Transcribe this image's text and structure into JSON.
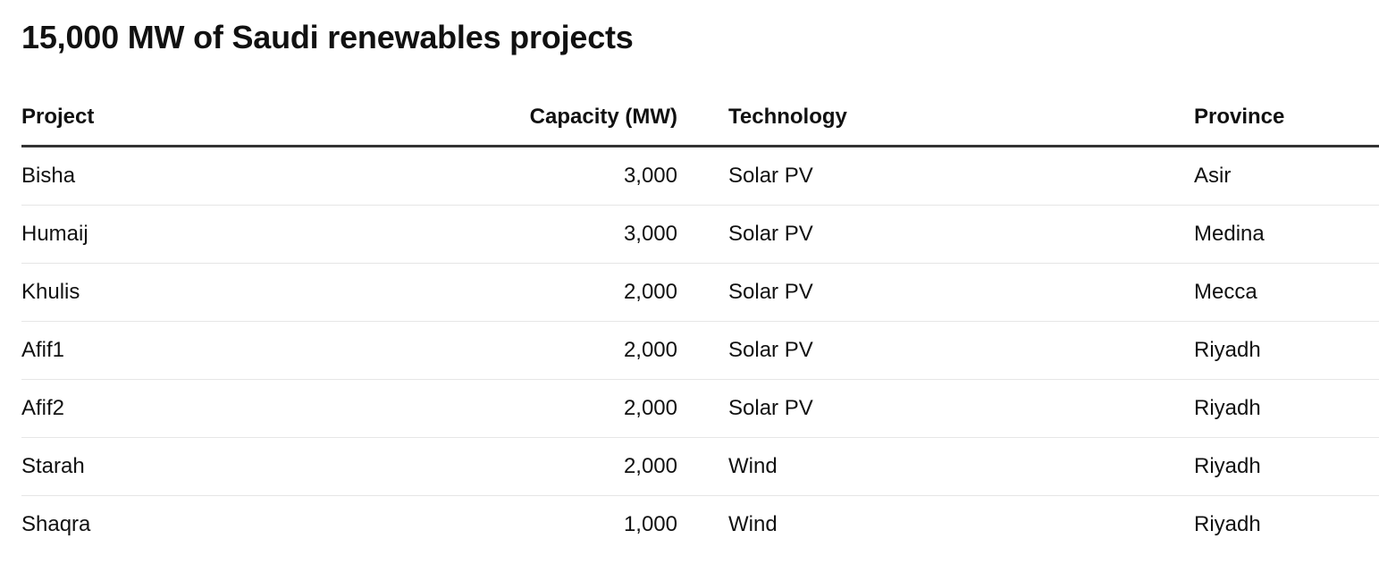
{
  "title": "15,000 MW of Saudi renewables projects",
  "chart_data": {
    "type": "table",
    "title": "15,000 MW of Saudi renewables projects",
    "columns": [
      "Project",
      "Capacity (MW)",
      "Technology",
      "Province"
    ],
    "rows": [
      {
        "project": "Bisha",
        "capacity": "3,000",
        "technology": "Solar PV",
        "province": "Asir"
      },
      {
        "project": "Humaij",
        "capacity": "3,000",
        "technology": "Solar PV",
        "province": "Medina"
      },
      {
        "project": "Khulis",
        "capacity": "2,000",
        "technology": "Solar PV",
        "province": "Mecca"
      },
      {
        "project": "Afif1",
        "capacity": "2,000",
        "technology": "Solar PV",
        "province": "Riyadh"
      },
      {
        "project": "Afif2",
        "capacity": "2,000",
        "technology": "Solar PV",
        "province": "Riyadh"
      },
      {
        "project": "Starah",
        "capacity": "2,000",
        "technology": "Wind",
        "province": "Riyadh"
      },
      {
        "project": "Shaqra",
        "capacity": "1,000",
        "technology": "Wind",
        "province": "Riyadh"
      }
    ]
  }
}
